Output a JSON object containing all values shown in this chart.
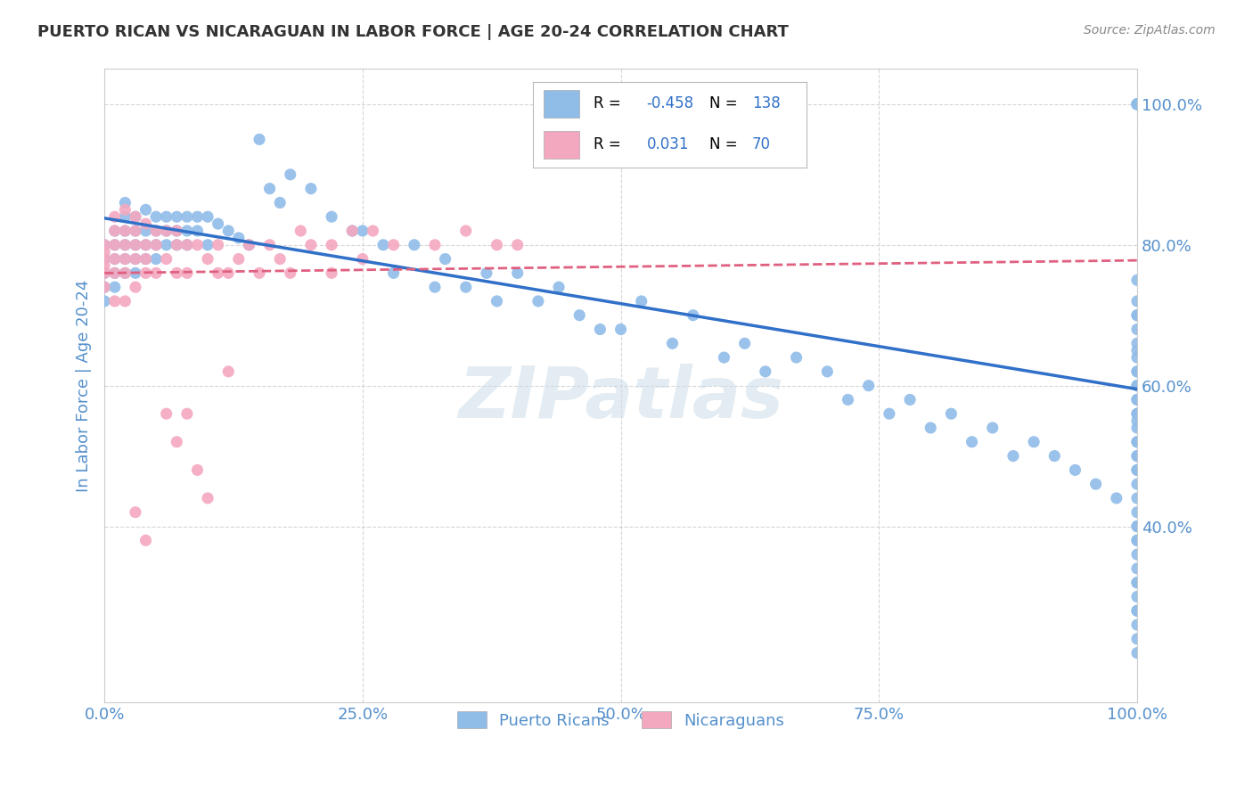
{
  "title": "PUERTO RICAN VS NICARAGUAN IN LABOR FORCE | AGE 20-24 CORRELATION CHART",
  "source": "Source: ZipAtlas.com",
  "ylabel": "In Labor Force | Age 20-24",
  "ytick_positions": [
    1.0,
    0.8,
    0.6,
    0.4
  ],
  "ytick_labels": [
    "100.0%",
    "80.0%",
    "60.0%",
    "40.0%"
  ],
  "xtick_positions": [
    0.0,
    0.25,
    0.5,
    0.75,
    1.0
  ],
  "xtick_labels": [
    "0.0%",
    "25.0%",
    "50.0%",
    "75.0%",
    "100.0%"
  ],
  "blue_R": "-0.458",
  "blue_N": "138",
  "pink_R": "0.031",
  "pink_N": "70",
  "blue_color": "#90bce8",
  "pink_color": "#f4a8c0",
  "blue_line_color": "#3070c8",
  "pink_line_color": "#e06080",
  "watermark": "ZIPatlas",
  "background_color": "#ffffff",
  "grid_color": "#cccccc",
  "blue_scatter_x": [
    0.0,
    0.0,
    0.0,
    0.0,
    0.0,
    0.01,
    0.01,
    0.01,
    0.01,
    0.01,
    0.02,
    0.02,
    0.02,
    0.02,
    0.02,
    0.02,
    0.03,
    0.03,
    0.03,
    0.03,
    0.03,
    0.04,
    0.04,
    0.04,
    0.04,
    0.05,
    0.05,
    0.05,
    0.05,
    0.06,
    0.06,
    0.06,
    0.07,
    0.07,
    0.07,
    0.08,
    0.08,
    0.08,
    0.09,
    0.09,
    0.1,
    0.1,
    0.11,
    0.12,
    0.13,
    0.14,
    0.15,
    0.16,
    0.17,
    0.18,
    0.2,
    0.22,
    0.24,
    0.25,
    0.27,
    0.28,
    0.3,
    0.32,
    0.33,
    0.35,
    0.37,
    0.38,
    0.4,
    0.42,
    0.44,
    0.46,
    0.48,
    0.5,
    0.52,
    0.55,
    0.57,
    0.6,
    0.62,
    0.64,
    0.67,
    0.7,
    0.72,
    0.74,
    0.76,
    0.78,
    0.8,
    0.82,
    0.84,
    0.86,
    0.88,
    0.9,
    0.92,
    0.94,
    0.96,
    0.98,
    1.0,
    1.0,
    1.0,
    1.0,
    1.0,
    1.0,
    1.0,
    1.0,
    1.0,
    1.0,
    1.0,
    1.0,
    1.0,
    1.0,
    1.0,
    1.0,
    1.0,
    1.0,
    1.0,
    1.0,
    1.0,
    1.0,
    1.0,
    1.0,
    1.0,
    1.0,
    1.0,
    1.0,
    1.0,
    1.0,
    1.0,
    1.0,
    1.0,
    1.0,
    1.0,
    1.0,
    1.0,
    1.0,
    1.0,
    1.0,
    1.0,
    1.0,
    1.0,
    1.0,
    1.0,
    1.0,
    1.0
  ],
  "blue_scatter_y": [
    0.8,
    0.78,
    0.76,
    0.74,
    0.72,
    0.82,
    0.8,
    0.78,
    0.76,
    0.74,
    0.86,
    0.84,
    0.82,
    0.8,
    0.78,
    0.76,
    0.84,
    0.82,
    0.8,
    0.78,
    0.76,
    0.85,
    0.82,
    0.8,
    0.78,
    0.84,
    0.82,
    0.8,
    0.78,
    0.84,
    0.82,
    0.8,
    0.84,
    0.82,
    0.8,
    0.84,
    0.82,
    0.8,
    0.84,
    0.82,
    0.84,
    0.8,
    0.83,
    0.82,
    0.81,
    0.8,
    0.95,
    0.88,
    0.86,
    0.9,
    0.88,
    0.84,
    0.82,
    0.82,
    0.8,
    0.76,
    0.8,
    0.74,
    0.78,
    0.74,
    0.76,
    0.72,
    0.76,
    0.72,
    0.74,
    0.7,
    0.68,
    0.68,
    0.72,
    0.66,
    0.7,
    0.64,
    0.66,
    0.62,
    0.64,
    0.62,
    0.58,
    0.6,
    0.56,
    0.58,
    0.54,
    0.56,
    0.52,
    0.54,
    0.5,
    0.52,
    0.5,
    0.48,
    0.46,
    0.44,
    1.0,
    1.0,
    1.0,
    1.0,
    1.0,
    1.0,
    0.75,
    0.72,
    0.7,
    0.65,
    0.62,
    0.6,
    0.58,
    0.56,
    0.52,
    0.5,
    0.48,
    0.55,
    0.4,
    0.38,
    0.32,
    0.28,
    0.22,
    0.7,
    0.68,
    0.66,
    0.64,
    0.62,
    0.6,
    0.58,
    0.56,
    0.54,
    0.52,
    0.5,
    0.48,
    0.46,
    0.44,
    0.42,
    0.4,
    0.38,
    0.36,
    0.34,
    0.32,
    0.3,
    0.28,
    0.26,
    0.24
  ],
  "pink_scatter_x": [
    0.0,
    0.0,
    0.0,
    0.0,
    0.0,
    0.0,
    0.01,
    0.01,
    0.01,
    0.01,
    0.01,
    0.01,
    0.02,
    0.02,
    0.02,
    0.02,
    0.02,
    0.02,
    0.03,
    0.03,
    0.03,
    0.03,
    0.03,
    0.04,
    0.04,
    0.04,
    0.04,
    0.05,
    0.05,
    0.05,
    0.06,
    0.06,
    0.07,
    0.07,
    0.07,
    0.08,
    0.08,
    0.09,
    0.1,
    0.11,
    0.11,
    0.12,
    0.13,
    0.14,
    0.15,
    0.16,
    0.17,
    0.19,
    0.2,
    0.22,
    0.24,
    0.26,
    0.28,
    0.32,
    0.35,
    0.38,
    0.4,
    0.07,
    0.08,
    0.12,
    0.18,
    0.22,
    0.25,
    0.03,
    0.04,
    0.06,
    0.09,
    0.1
  ],
  "pink_scatter_y": [
    0.8,
    0.79,
    0.78,
    0.77,
    0.76,
    0.74,
    0.84,
    0.82,
    0.8,
    0.78,
    0.76,
    0.72,
    0.85,
    0.82,
    0.8,
    0.78,
    0.76,
    0.72,
    0.84,
    0.82,
    0.8,
    0.78,
    0.74,
    0.83,
    0.8,
    0.78,
    0.76,
    0.82,
    0.8,
    0.76,
    0.82,
    0.78,
    0.82,
    0.8,
    0.76,
    0.8,
    0.76,
    0.8,
    0.78,
    0.8,
    0.76,
    0.76,
    0.78,
    0.8,
    0.76,
    0.8,
    0.78,
    0.82,
    0.8,
    0.8,
    0.82,
    0.82,
    0.8,
    0.8,
    0.82,
    0.8,
    0.8,
    0.52,
    0.56,
    0.62,
    0.76,
    0.76,
    0.78,
    0.42,
    0.38,
    0.56,
    0.48,
    0.44
  ],
  "blue_line_x0": 0.0,
  "blue_line_x1": 1.0,
  "blue_line_y0": 0.838,
  "blue_line_y1": 0.595,
  "pink_line_x0": 0.0,
  "pink_line_x1": 1.0,
  "pink_line_y0": 0.76,
  "pink_line_y1": 0.778,
  "title_color": "#333333",
  "axis_label_color": "#5590cc",
  "tick_label_color": "#5590cc",
  "source_color": "#888888"
}
